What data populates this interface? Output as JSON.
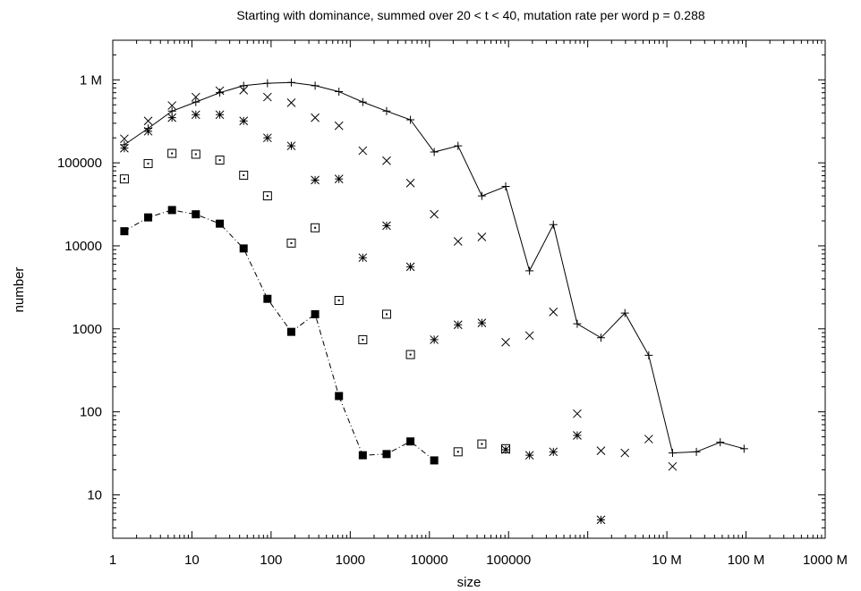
{
  "chart_data": {
    "type": "scatter",
    "title": "Starting with dominance, summed over 20 < t < 40, mutation rate per word p = 0.288",
    "xlabel": "size",
    "ylabel": "number",
    "xscale": "log",
    "yscale": "log",
    "xlim": [
      1,
      1000000000
    ],
    "ylim": [
      3,
      3000000
    ],
    "grid": false,
    "legend": "none",
    "x_ticks": [
      {
        "value": 1,
        "label": "1"
      },
      {
        "value": 10,
        "label": "10"
      },
      {
        "value": 100,
        "label": "100"
      },
      {
        "value": 1000,
        "label": "1000"
      },
      {
        "value": 10000,
        "label": "10000"
      },
      {
        "value": 100000,
        "label": "100000"
      },
      {
        "value": 10000000,
        "label": "10 M"
      },
      {
        "value": 100000000,
        "label": "100 M"
      },
      {
        "value": 1000000000,
        "label": "1000 M"
      }
    ],
    "y_ticks": [
      {
        "value": 10,
        "label": "10"
      },
      {
        "value": 100,
        "label": "100"
      },
      {
        "value": 1000,
        "label": "1000"
      },
      {
        "value": 10000,
        "label": "10000"
      },
      {
        "value": 100000,
        "label": "100000"
      },
      {
        "value": 1000000,
        "label": "1 M"
      }
    ],
    "series": [
      {
        "marker": "plus",
        "line": "solid",
        "color": "#000000",
        "points": [
          [
            1.4,
            165000
          ],
          [
            2.8,
            260000
          ],
          [
            5.6,
            420000
          ],
          [
            11.2,
            540000
          ],
          [
            22.5,
            700000
          ],
          [
            45,
            850000
          ],
          [
            90,
            910000
          ],
          [
            180,
            930000
          ],
          [
            360,
            850000
          ],
          [
            720,
            720000
          ],
          [
            1440,
            540000
          ],
          [
            2880,
            420000
          ],
          [
            5760,
            330000
          ],
          [
            11500,
            135000
          ],
          [
            23000,
            160000
          ],
          [
            46000,
            40000
          ],
          [
            92000,
            52000
          ],
          [
            184000,
            5000
          ],
          [
            368000,
            18000
          ],
          [
            737000,
            1150
          ],
          [
            1470000,
            780
          ],
          [
            2950000,
            1550
          ],
          [
            5900000,
            480
          ],
          [
            11800000,
            32
          ],
          [
            23600000,
            33
          ],
          [
            47200000,
            43
          ],
          [
            94400000,
            36
          ]
        ]
      },
      {
        "marker": "cross",
        "line": "none",
        "color": "#000000",
        "points": [
          [
            1.4,
            195000
          ],
          [
            2.8,
            320000
          ],
          [
            5.6,
            490000
          ],
          [
            11.2,
            620000
          ],
          [
            22.5,
            740000
          ],
          [
            45,
            750000
          ],
          [
            90,
            620000
          ],
          [
            180,
            530000
          ],
          [
            360,
            350000
          ],
          [
            720,
            280000
          ],
          [
            1440,
            140000
          ],
          [
            2880,
            106000
          ],
          [
            5760,
            57000
          ],
          [
            11500,
            24000
          ],
          [
            23000,
            11300
          ],
          [
            46000,
            12800
          ],
          [
            92000,
            690
          ],
          [
            184000,
            830
          ],
          [
            368000,
            1600
          ],
          [
            737000,
            95
          ],
          [
            1470000,
            34
          ],
          [
            2950000,
            32
          ],
          [
            5900000,
            47
          ],
          [
            11800000,
            22
          ]
        ]
      },
      {
        "marker": "star",
        "line": "none",
        "color": "#000000",
        "points": [
          [
            1.4,
            150000
          ],
          [
            2.8,
            240000
          ],
          [
            5.6,
            350000
          ],
          [
            11.2,
            380000
          ],
          [
            22.5,
            380000
          ],
          [
            45,
            320000
          ],
          [
            90,
            200000
          ],
          [
            180,
            160000
          ],
          [
            360,
            62000
          ],
          [
            720,
            64000
          ],
          [
            1440,
            7200
          ],
          [
            2880,
            17500
          ],
          [
            5760,
            5600
          ],
          [
            11500,
            740
          ],
          [
            23000,
            1120
          ],
          [
            46000,
            1180
          ],
          [
            92000,
            35
          ],
          [
            184000,
            30
          ],
          [
            368000,
            33
          ],
          [
            737000,
            52
          ],
          [
            1470000,
            5
          ]
        ]
      },
      {
        "marker": "dotted-square",
        "line": "none",
        "color": "#000000",
        "points": [
          [
            1.4,
            64000
          ],
          [
            2.8,
            98000
          ],
          [
            5.6,
            130000
          ],
          [
            11.2,
            127000
          ],
          [
            22.5,
            108000
          ],
          [
            45,
            71000
          ],
          [
            90,
            40000
          ],
          [
            180,
            10800
          ],
          [
            360,
            16500
          ],
          [
            720,
            2200
          ],
          [
            1440,
            740
          ],
          [
            2880,
            1500
          ],
          [
            5760,
            490
          ],
          [
            23000,
            33
          ],
          [
            46000,
            41
          ],
          [
            92000,
            36
          ]
        ]
      },
      {
        "marker": "filled-square",
        "line": "dashdot",
        "color": "#000000",
        "points": [
          [
            1.4,
            15000
          ],
          [
            2.8,
            22000
          ],
          [
            5.6,
            27000
          ],
          [
            11.2,
            24000
          ],
          [
            22.5,
            18500
          ],
          [
            45,
            9300
          ],
          [
            90,
            2300
          ],
          [
            180,
            920
          ],
          [
            360,
            1500
          ],
          [
            720,
            155
          ],
          [
            1440,
            30
          ],
          [
            2880,
            31
          ],
          [
            5760,
            44
          ],
          [
            11500,
            26
          ]
        ]
      }
    ]
  }
}
